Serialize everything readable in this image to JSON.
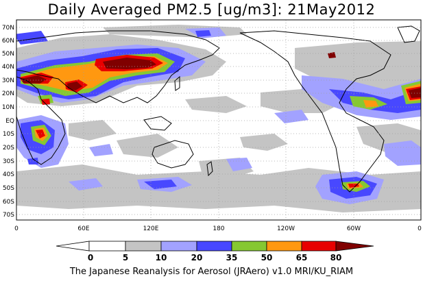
{
  "title": "Daily Averaged PM2.5 [ug/m3]: 21May2012",
  "footer": "The Japanese Reanalysis for Aerosol (JRAero) v1.0 MRI/KU_RIAM",
  "map": {
    "lon_labels": [
      "0",
      "60E",
      "120E",
      "180",
      "120W",
      "60W",
      "0"
    ],
    "lat_labels": [
      "70N",
      "60N",
      "50N",
      "40N",
      "30N",
      "20N",
      "10N",
      "EQ",
      "10S",
      "20S",
      "30S",
      "40S",
      "50S",
      "60S",
      "70S"
    ]
  },
  "colorbar": {
    "thresholds": [
      "0",
      "5",
      "10",
      "20",
      "35",
      "50",
      "65",
      "80"
    ],
    "colors": [
      "#ffffff",
      "#c4c4c4",
      "#a2a2ff",
      "#4848ff",
      "#86c832",
      "#ff9810",
      "#e80000",
      "#800000"
    ]
  },
  "colors": {
    "grey": "#c4c4c4",
    "lightblue": "#a2a2ff",
    "blue": "#4848ff",
    "green": "#86c832",
    "orange": "#ff9810",
    "red": "#e80000",
    "darkred": "#800000"
  }
}
